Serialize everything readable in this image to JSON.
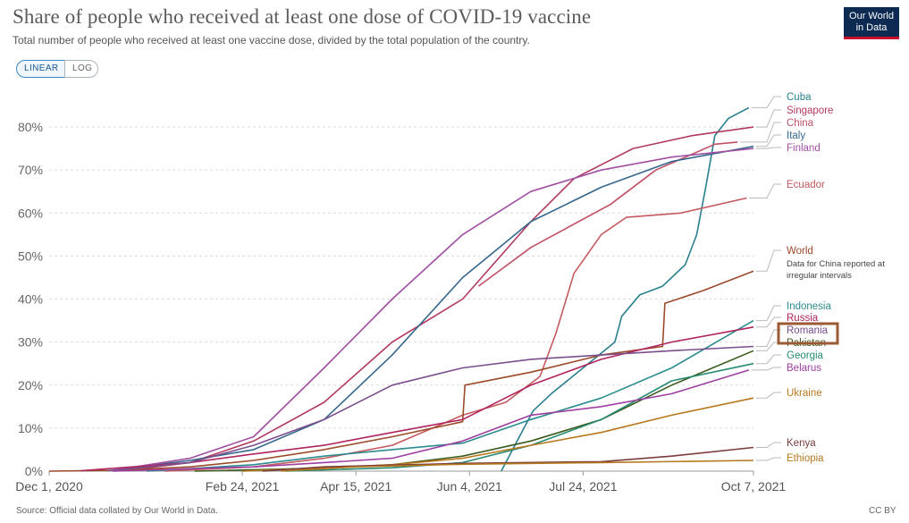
{
  "header": {
    "title": "Share of people who received at least one dose of COVID-19 vaccine",
    "subtitle": "Total number of people who received at least one vaccine dose, divided by the total population of the country.",
    "logo_line1": "Our World",
    "logo_line2": "in Data"
  },
  "controls": {
    "linear_label": "LINEAR",
    "log_label": "LOG",
    "selected": "LINEAR"
  },
  "footer": {
    "source": "Source: Official data collated by Our World in Data.",
    "license": "CC BY"
  },
  "colors": {
    "highlight_box": "#9b5a34"
  },
  "chart_data": {
    "type": "line",
    "title": "Share of people who received at least one dose of COVID-19 vaccine",
    "xlabel": "",
    "ylabel": "",
    "x_range": [
      "2020-12-01",
      "2021-10-07"
    ],
    "x_ticks": [
      {
        "date": "2020-12-01",
        "label": "Dec 1, 2020"
      },
      {
        "date": "2021-02-24",
        "label": "Feb 24, 2021"
      },
      {
        "date": "2021-04-15",
        "label": "Apr 15, 2021"
      },
      {
        "date": "2021-06-04",
        "label": "Jun 4, 2021"
      },
      {
        "date": "2021-07-24",
        "label": "Jul 24, 2021"
      },
      {
        "date": "2021-10-07",
        "label": "Oct 7, 2021"
      }
    ],
    "ylim": [
      0,
      85
    ],
    "y_ticks": [
      0,
      10,
      20,
      30,
      40,
      50,
      60,
      70,
      80
    ],
    "y_tick_format": "%",
    "grid": "horizontal dashed",
    "legend": "right, labels at line ends",
    "annotation": "Data for China reported at irregular intervals",
    "highlight": "Romania",
    "series": [
      {
        "name": "Cuba",
        "color": "#2a7f8f",
        "points": [
          [
            "2021-06-18",
            0
          ],
          [
            "2021-06-25",
            7
          ],
          [
            "2021-07-02",
            14
          ],
          [
            "2021-07-10",
            18
          ],
          [
            "2021-07-24",
            24
          ],
          [
            "2021-08-07",
            30
          ],
          [
            "2021-08-10",
            36
          ],
          [
            "2021-08-18",
            41
          ],
          [
            "2021-08-28",
            43
          ],
          [
            "2021-09-07",
            48
          ],
          [
            "2021-09-12",
            55
          ],
          [
            "2021-09-16",
            66
          ],
          [
            "2021-09-20",
            78
          ],
          [
            "2021-09-26",
            82
          ],
          [
            "2021-10-05",
            84.5
          ]
        ]
      },
      {
        "name": "Singapore",
        "color": "#b13a62",
        "points": [
          [
            "2021-01-05",
            0.2
          ],
          [
            "2021-02-01",
            2
          ],
          [
            "2021-03-01",
            7
          ],
          [
            "2021-04-01",
            16
          ],
          [
            "2021-05-01",
            30
          ],
          [
            "2021-06-01",
            40
          ],
          [
            "2021-07-01",
            58
          ],
          [
            "2021-07-20",
            68
          ],
          [
            "2021-08-15",
            75
          ],
          [
            "2021-09-10",
            78
          ],
          [
            "2021-10-07",
            80
          ]
        ]
      },
      {
        "name": "China",
        "color": "#c15065",
        "points": [
          [
            "2021-06-08",
            43
          ],
          [
            "2021-07-01",
            52
          ],
          [
            "2021-08-05",
            62
          ],
          [
            "2021-08-25",
            70
          ],
          [
            "2021-09-20",
            76
          ],
          [
            "2021-09-30",
            76.5
          ]
        ]
      },
      {
        "name": "Italy",
        "color": "#36678c",
        "points": [
          [
            "2020-12-27",
            0.1
          ],
          [
            "2021-02-01",
            2.5
          ],
          [
            "2021-03-01",
            5
          ],
          [
            "2021-04-01",
            12
          ],
          [
            "2021-05-01",
            27
          ],
          [
            "2021-06-01",
            45
          ],
          [
            "2021-07-01",
            58
          ],
          [
            "2021-08-01",
            66
          ],
          [
            "2021-09-01",
            72
          ],
          [
            "2021-10-07",
            75.5
          ]
        ]
      },
      {
        "name": "Finland",
        "color": "#a04fa2",
        "points": [
          [
            "2020-12-28",
            0.1
          ],
          [
            "2021-02-01",
            3
          ],
          [
            "2021-03-01",
            8
          ],
          [
            "2021-04-01",
            24
          ],
          [
            "2021-05-01",
            40
          ],
          [
            "2021-06-01",
            55
          ],
          [
            "2021-07-01",
            65
          ],
          [
            "2021-08-01",
            70
          ],
          [
            "2021-09-01",
            73
          ],
          [
            "2021-10-07",
            75
          ]
        ]
      },
      {
        "name": "Ecuador",
        "color": "#c4595e",
        "points": [
          [
            "2021-01-21",
            0
          ],
          [
            "2021-03-01",
            1
          ],
          [
            "2021-04-01",
            3
          ],
          [
            "2021-05-01",
            6
          ],
          [
            "2021-06-01",
            13
          ],
          [
            "2021-06-20",
            16
          ],
          [
            "2021-07-05",
            22
          ],
          [
            "2021-07-12",
            32
          ],
          [
            "2021-07-20",
            46
          ],
          [
            "2021-08-01",
            55
          ],
          [
            "2021-08-12",
            59
          ],
          [
            "2021-09-05",
            60
          ],
          [
            "2021-10-04",
            63.5
          ]
        ]
      },
      {
        "name": "World",
        "color": "#9b4a2a",
        "points": [
          [
            "2020-12-01",
            0
          ],
          [
            "2021-01-01",
            0.2
          ],
          [
            "2021-02-01",
            1
          ],
          [
            "2021-03-01",
            2.5
          ],
          [
            "2021-04-01",
            5
          ],
          [
            "2021-05-01",
            8
          ],
          [
            "2021-06-01",
            11.5
          ],
          [
            "2021-06-02",
            20
          ],
          [
            "2021-07-01",
            23
          ],
          [
            "2021-08-01",
            27
          ],
          [
            "2021-08-28",
            29
          ],
          [
            "2021-08-29",
            39
          ],
          [
            "2021-09-15",
            42
          ],
          [
            "2021-10-07",
            46.5
          ]
        ]
      },
      {
        "name": "Indonesia",
        "color": "#2b8b8f",
        "points": [
          [
            "2021-01-13",
            0
          ],
          [
            "2021-03-01",
            1.5
          ],
          [
            "2021-04-01",
            3.5
          ],
          [
            "2021-05-01",
            5
          ],
          [
            "2021-06-01",
            6.5
          ],
          [
            "2021-07-01",
            12
          ],
          [
            "2021-08-01",
            17
          ],
          [
            "2021-09-01",
            24
          ],
          [
            "2021-10-07",
            35
          ]
        ]
      },
      {
        "name": "Russia",
        "color": "#b0245f",
        "points": [
          [
            "2020-12-15",
            0.1
          ],
          [
            "2021-02-01",
            2
          ],
          [
            "2021-03-01",
            4
          ],
          [
            "2021-04-01",
            6
          ],
          [
            "2021-05-01",
            9
          ],
          [
            "2021-06-01",
            12
          ],
          [
            "2021-07-01",
            20
          ],
          [
            "2021-08-01",
            26
          ],
          [
            "2021-09-01",
            30
          ],
          [
            "2021-10-07",
            33.5
          ]
        ]
      },
      {
        "name": "Romania",
        "color": "#7a4d8c",
        "points": [
          [
            "2020-12-27",
            0.1
          ],
          [
            "2021-02-01",
            2
          ],
          [
            "2021-03-01",
            6
          ],
          [
            "2021-04-01",
            12
          ],
          [
            "2021-05-01",
            20
          ],
          [
            "2021-06-01",
            24
          ],
          [
            "2021-07-01",
            26
          ],
          [
            "2021-08-01",
            27
          ],
          [
            "2021-09-01",
            28
          ],
          [
            "2021-10-07",
            29
          ]
        ]
      },
      {
        "name": "Pakistan",
        "color": "#3a5a1c",
        "points": [
          [
            "2021-02-03",
            0
          ],
          [
            "2021-04-01",
            0.7
          ],
          [
            "2021-05-01",
            1.5
          ],
          [
            "2021-06-01",
            3.5
          ],
          [
            "2021-07-01",
            7
          ],
          [
            "2021-08-01",
            12
          ],
          [
            "2021-09-01",
            20
          ],
          [
            "2021-10-07",
            28
          ]
        ]
      },
      {
        "name": "Georgia",
        "color": "#268a72",
        "points": [
          [
            "2021-03-15",
            0
          ],
          [
            "2021-05-01",
            0.8
          ],
          [
            "2021-06-01",
            2
          ],
          [
            "2021-07-01",
            6
          ],
          [
            "2021-08-01",
            12
          ],
          [
            "2021-09-01",
            21
          ],
          [
            "2021-10-07",
            25
          ]
        ]
      },
      {
        "name": "Belarus",
        "color": "#9e3fa0",
        "points": [
          [
            "2020-12-29",
            0
          ],
          [
            "2021-03-01",
            1
          ],
          [
            "2021-04-01",
            2
          ],
          [
            "2021-05-01",
            3
          ],
          [
            "2021-06-01",
            7
          ],
          [
            "2021-07-01",
            13
          ],
          [
            "2021-08-01",
            15
          ],
          [
            "2021-09-01",
            18
          ],
          [
            "2021-10-05",
            23.5
          ]
        ]
      },
      {
        "name": "Ukraine",
        "color": "#b8781c",
        "points": [
          [
            "2021-02-24",
            0
          ],
          [
            "2021-04-01",
            0.8
          ],
          [
            "2021-05-01",
            1.5
          ],
          [
            "2021-06-01",
            3
          ],
          [
            "2021-07-01",
            6
          ],
          [
            "2021-08-01",
            9
          ],
          [
            "2021-09-01",
            13
          ],
          [
            "2021-10-07",
            17
          ]
        ]
      },
      {
        "name": "Kenya",
        "color": "#7b3c3c",
        "points": [
          [
            "2021-03-05",
            0
          ],
          [
            "2021-04-01",
            1
          ],
          [
            "2021-06-01",
            1.8
          ],
          [
            "2021-08-01",
            2.2
          ],
          [
            "2021-09-01",
            3.5
          ],
          [
            "2021-10-07",
            5.5
          ]
        ]
      },
      {
        "name": "Ethiopia",
        "color": "#b5781e",
        "points": [
          [
            "2021-03-13",
            0
          ],
          [
            "2021-04-15",
            1
          ],
          [
            "2021-06-01",
            1.6
          ],
          [
            "2021-08-01",
            2
          ],
          [
            "2021-10-07",
            2.5
          ]
        ]
      }
    ]
  }
}
